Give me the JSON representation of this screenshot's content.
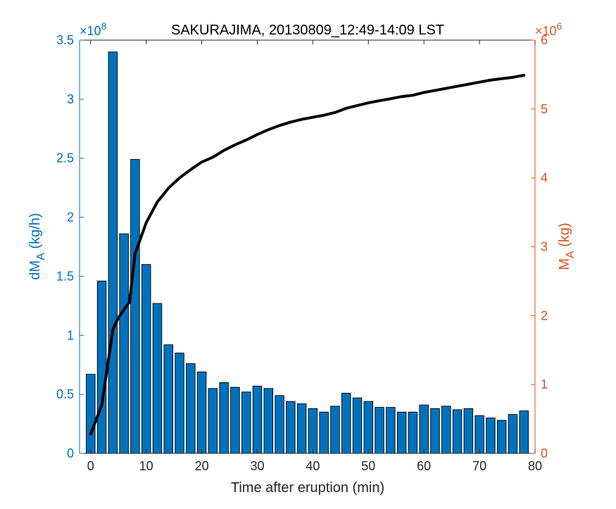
{
  "chart_data": {
    "type": "bar",
    "title": "SAKURAJIMA, 20130809_12:49-14:09 LST",
    "xlabel": "Time after eruption (min)",
    "xlim": [
      -2,
      80
    ],
    "xticks": [
      0,
      10,
      20,
      30,
      40,
      50,
      60,
      70,
      80
    ],
    "y_left": {
      "label_main": "dM",
      "label_sub": "A",
      "label_unit": " (kg/h)",
      "lim": [
        0,
        3.5
      ],
      "ticks": [
        0,
        0.5,
        1,
        1.5,
        2,
        2.5,
        3,
        3.5
      ],
      "tick_labels": [
        "0",
        "0.5",
        "1",
        "1.5",
        "2",
        "2.5",
        "3",
        "3.5"
      ],
      "exponent_prefix": "×10",
      "exponent": "8",
      "color": "#0072BD"
    },
    "y_right": {
      "label_main": "M",
      "label_sub": "A",
      "label_unit": " (kg)",
      "lim": [
        0,
        6
      ],
      "ticks": [
        0,
        1,
        2,
        3,
        4,
        5,
        6
      ],
      "tick_labels": [
        "0",
        "1",
        "2",
        "3",
        "4",
        "5",
        "6"
      ],
      "exponent_prefix": "×10",
      "exponent": "6",
      "color": "#D95319"
    },
    "bar_series": {
      "color": "#0072BD",
      "x": [
        0,
        2,
        4,
        6,
        8,
        10,
        12,
        14,
        16,
        18,
        20,
        22,
        24,
        26,
        28,
        30,
        32,
        34,
        36,
        38,
        40,
        42,
        44,
        46,
        48,
        50,
        52,
        54,
        56,
        58,
        60,
        62,
        64,
        66,
        68,
        70,
        72,
        74,
        76,
        78
      ],
      "values": [
        0.67,
        1.46,
        3.4,
        1.86,
        2.49,
        1.6,
        1.27,
        0.92,
        0.85,
        0.76,
        0.69,
        0.55,
        0.6,
        0.56,
        0.52,
        0.57,
        0.55,
        0.49,
        0.44,
        0.42,
        0.38,
        0.35,
        0.4,
        0.51,
        0.47,
        0.44,
        0.39,
        0.39,
        0.35,
        0.35,
        0.41,
        0.38,
        0.4,
        0.37,
        0.38,
        0.32,
        0.3,
        0.28,
        0.33,
        0.36
      ]
    },
    "line_series": {
      "color": "#000000",
      "axis": "right",
      "x": [
        0,
        2,
        4,
        5,
        7,
        8,
        10,
        12,
        14,
        16,
        18,
        20,
        22,
        24,
        26,
        28,
        30,
        32,
        34,
        36,
        38,
        40,
        42,
        44,
        46,
        48,
        50,
        52,
        54,
        56,
        58,
        60,
        62,
        64,
        66,
        68,
        70,
        72,
        74,
        76,
        78
      ],
      "values": [
        0.28,
        0.7,
        1.8,
        1.97,
        2.2,
        2.9,
        3.35,
        3.65,
        3.85,
        4.0,
        4.12,
        4.23,
        4.3,
        4.4,
        4.48,
        4.55,
        4.63,
        4.7,
        4.76,
        4.81,
        4.85,
        4.88,
        4.91,
        4.95,
        5.01,
        5.05,
        5.09,
        5.12,
        5.15,
        5.18,
        5.2,
        5.24,
        5.27,
        5.3,
        5.33,
        5.36,
        5.39,
        5.42,
        5.44,
        5.46,
        5.49
      ]
    }
  }
}
